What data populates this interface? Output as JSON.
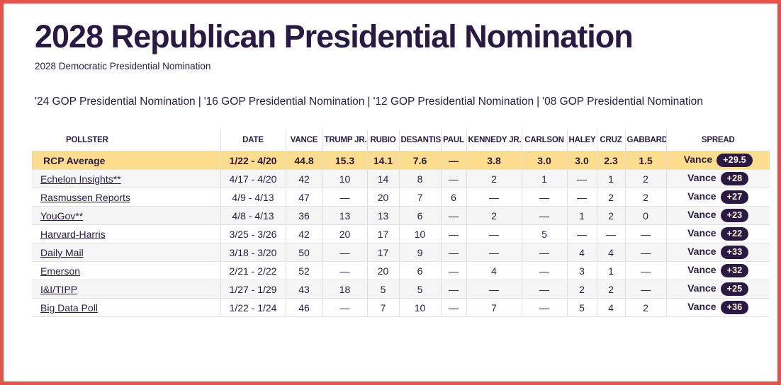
{
  "header": {
    "title": "2028 Republican Presidential Nomination",
    "subtitle_link": "2028 Democratic Presidential Nomination"
  },
  "related_links": {
    "separator": "|",
    "items": [
      "'24 GOP Presidential Nomination",
      "'16 GOP Presidential Nomination",
      "'12 GOP Presidential Nomination",
      "'08 GOP Presidential Nomination"
    ]
  },
  "colors": {
    "frame_border": "#e2534a",
    "accent_dark_purple": "#2a1a43",
    "average_row_bg": "#fcdc8e",
    "stripe_row_bg": "#f5f5f5",
    "badge_bg": "#2a1a43",
    "badge_text": "#fdf3da"
  },
  "table": {
    "columns": [
      {
        "label": "POLLSTER",
        "key": "pollster"
      },
      {
        "label": "DATE",
        "key": "date"
      },
      {
        "label": "VANCE",
        "key": "vance"
      },
      {
        "label": "TRUMP JR.",
        "key": "trump-jr"
      },
      {
        "label": "RUBIO",
        "key": "rubio"
      },
      {
        "label": "DESANTIS",
        "key": "desantis"
      },
      {
        "label": "PAUL",
        "key": "paul"
      },
      {
        "label": "KENNEDY JR.",
        "key": "kennedy-jr"
      },
      {
        "label": "CARLSON",
        "key": "carlson"
      },
      {
        "label": "HALEY",
        "key": "haley"
      },
      {
        "label": "CRUZ",
        "key": "cruz"
      },
      {
        "label": "GABBARD",
        "key": "gabbard"
      },
      {
        "label": "SPREAD",
        "key": "spread"
      }
    ],
    "rows": [
      {
        "pollster": "RCP Average",
        "type": "average",
        "date": "1/22 - 4/20",
        "values": [
          "44.8",
          "15.3",
          "14.1",
          "7.6",
          "—",
          "3.8",
          "3.0",
          "3.0",
          "2.3",
          "1.5"
        ],
        "spread": {
          "leader": "Vance",
          "margin": "+29.5"
        }
      },
      {
        "pollster": "Echelon Insights**",
        "type": "poll",
        "date": "4/17 - 4/20",
        "values": [
          "42",
          "10",
          "14",
          "8",
          "—",
          "2",
          "1",
          "—",
          "1",
          "2"
        ],
        "spread": {
          "leader": "Vance",
          "margin": "+28"
        }
      },
      {
        "pollster": "Rasmussen Reports",
        "type": "poll",
        "date": "4/9 - 4/13",
        "values": [
          "47",
          "—",
          "20",
          "7",
          "6",
          "—",
          "—",
          "—",
          "2",
          "2"
        ],
        "spread": {
          "leader": "Vance",
          "margin": "+27"
        }
      },
      {
        "pollster": "YouGov**",
        "type": "poll",
        "date": "4/8 - 4/13",
        "values": [
          "36",
          "13",
          "13",
          "6",
          "—",
          "2",
          "—",
          "1",
          "2",
          "0"
        ],
        "spread": {
          "leader": "Vance",
          "margin": "+23"
        }
      },
      {
        "pollster": "Harvard-Harris",
        "type": "poll",
        "date": "3/25 - 3/26",
        "values": [
          "42",
          "20",
          "17",
          "10",
          "—",
          "—",
          "5",
          "—",
          "—",
          "—"
        ],
        "spread": {
          "leader": "Vance",
          "margin": "+22"
        }
      },
      {
        "pollster": "Daily Mail",
        "type": "poll",
        "date": "3/18 - 3/20",
        "values": [
          "50",
          "—",
          "17",
          "9",
          "—",
          "—",
          "—",
          "4",
          "4",
          "—"
        ],
        "spread": {
          "leader": "Vance",
          "margin": "+33"
        }
      },
      {
        "pollster": "Emerson",
        "type": "poll",
        "date": "2/21 - 2/22",
        "values": [
          "52",
          "—",
          "20",
          "6",
          "—",
          "4",
          "—",
          "3",
          "1",
          "—"
        ],
        "spread": {
          "leader": "Vance",
          "margin": "+32"
        }
      },
      {
        "pollster": "I&I/TIPP",
        "type": "poll",
        "date": "1/27 - 1/29",
        "values": [
          "43",
          "18",
          "5",
          "5",
          "—",
          "—",
          "—",
          "2",
          "2",
          "—"
        ],
        "spread": {
          "leader": "Vance",
          "margin": "+25"
        }
      },
      {
        "pollster": "Big Data Poll",
        "type": "poll",
        "date": "1/22 - 1/24",
        "values": [
          "46",
          "—",
          "7",
          "10",
          "—",
          "7",
          "—",
          "5",
          "4",
          "2"
        ],
        "spread": {
          "leader": "Vance",
          "margin": "+36"
        }
      }
    ]
  }
}
